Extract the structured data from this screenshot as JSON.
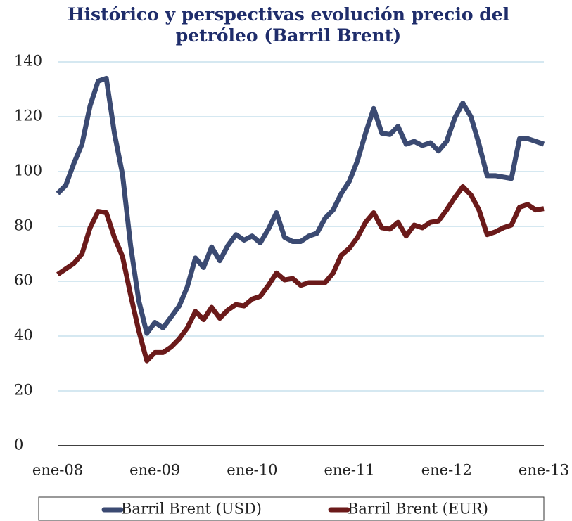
{
  "chart_data": {
    "type": "line",
    "title": "Histórico y perspectivas evolución precio del petróleo (Barril Brent)",
    "categories": [
      "ene-08",
      null,
      null,
      null,
      null,
      null,
      null,
      null,
      null,
      null,
      null,
      null,
      "ene-09",
      null,
      null,
      null,
      null,
      null,
      null,
      null,
      null,
      null,
      null,
      null,
      "ene-10",
      null,
      null,
      null,
      null,
      null,
      null,
      null,
      null,
      null,
      null,
      null,
      "ene-11",
      null,
      null,
      null,
      null,
      null,
      null,
      null,
      null,
      null,
      null,
      null,
      "ene-12",
      null,
      null,
      null,
      null,
      null,
      null,
      null,
      null,
      null,
      null,
      null,
      "ene-13"
    ],
    "series": [
      {
        "name": "Barril Brent (USD)",
        "color": "#3b4a72",
        "values": [
          92,
          95,
          103,
          110,
          124,
          133,
          134,
          114,
          99,
          73,
          53,
          41,
          45,
          43,
          47,
          51,
          58,
          68.5,
          65,
          72.5,
          67.5,
          73,
          77,
          75,
          76.5,
          74,
          79,
          85,
          76,
          74.5,
          74.5,
          76.5,
          77.5,
          83,
          86,
          92,
          96.5,
          104,
          114,
          123,
          114,
          113.5,
          116.5,
          110,
          111,
          109.5,
          110.5,
          107.5,
          111,
          119.5,
          125,
          120,
          110,
          98.5,
          98.5,
          98,
          97.5,
          112,
          112,
          111,
          110
        ]
      },
      {
        "name": "Barril Brent (EUR)",
        "color": "#6b1a1a",
        "values": [
          62.5,
          64.5,
          66.5,
          70,
          79.5,
          85.5,
          85,
          76,
          69,
          55,
          42,
          31,
          34,
          34,
          36,
          39,
          43,
          49,
          46,
          50.5,
          46.5,
          49.5,
          51.5,
          51,
          53.5,
          54.5,
          58.5,
          63,
          60.5,
          61,
          58.5,
          59.5,
          59.5,
          59.5,
          63,
          69.5,
          72,
          76,
          81.5,
          85,
          79.5,
          79,
          81.5,
          76.5,
          80.5,
          79.5,
          81.5,
          82,
          86,
          90.5,
          94.5,
          91.5,
          86,
          77,
          78,
          79.5,
          80.5,
          87,
          88,
          86,
          86.5
        ]
      }
    ],
    "ylim": [
      0,
      140
    ],
    "yticks": [
      0,
      20,
      40,
      60,
      80,
      100,
      120,
      140
    ],
    "grid": true
  }
}
